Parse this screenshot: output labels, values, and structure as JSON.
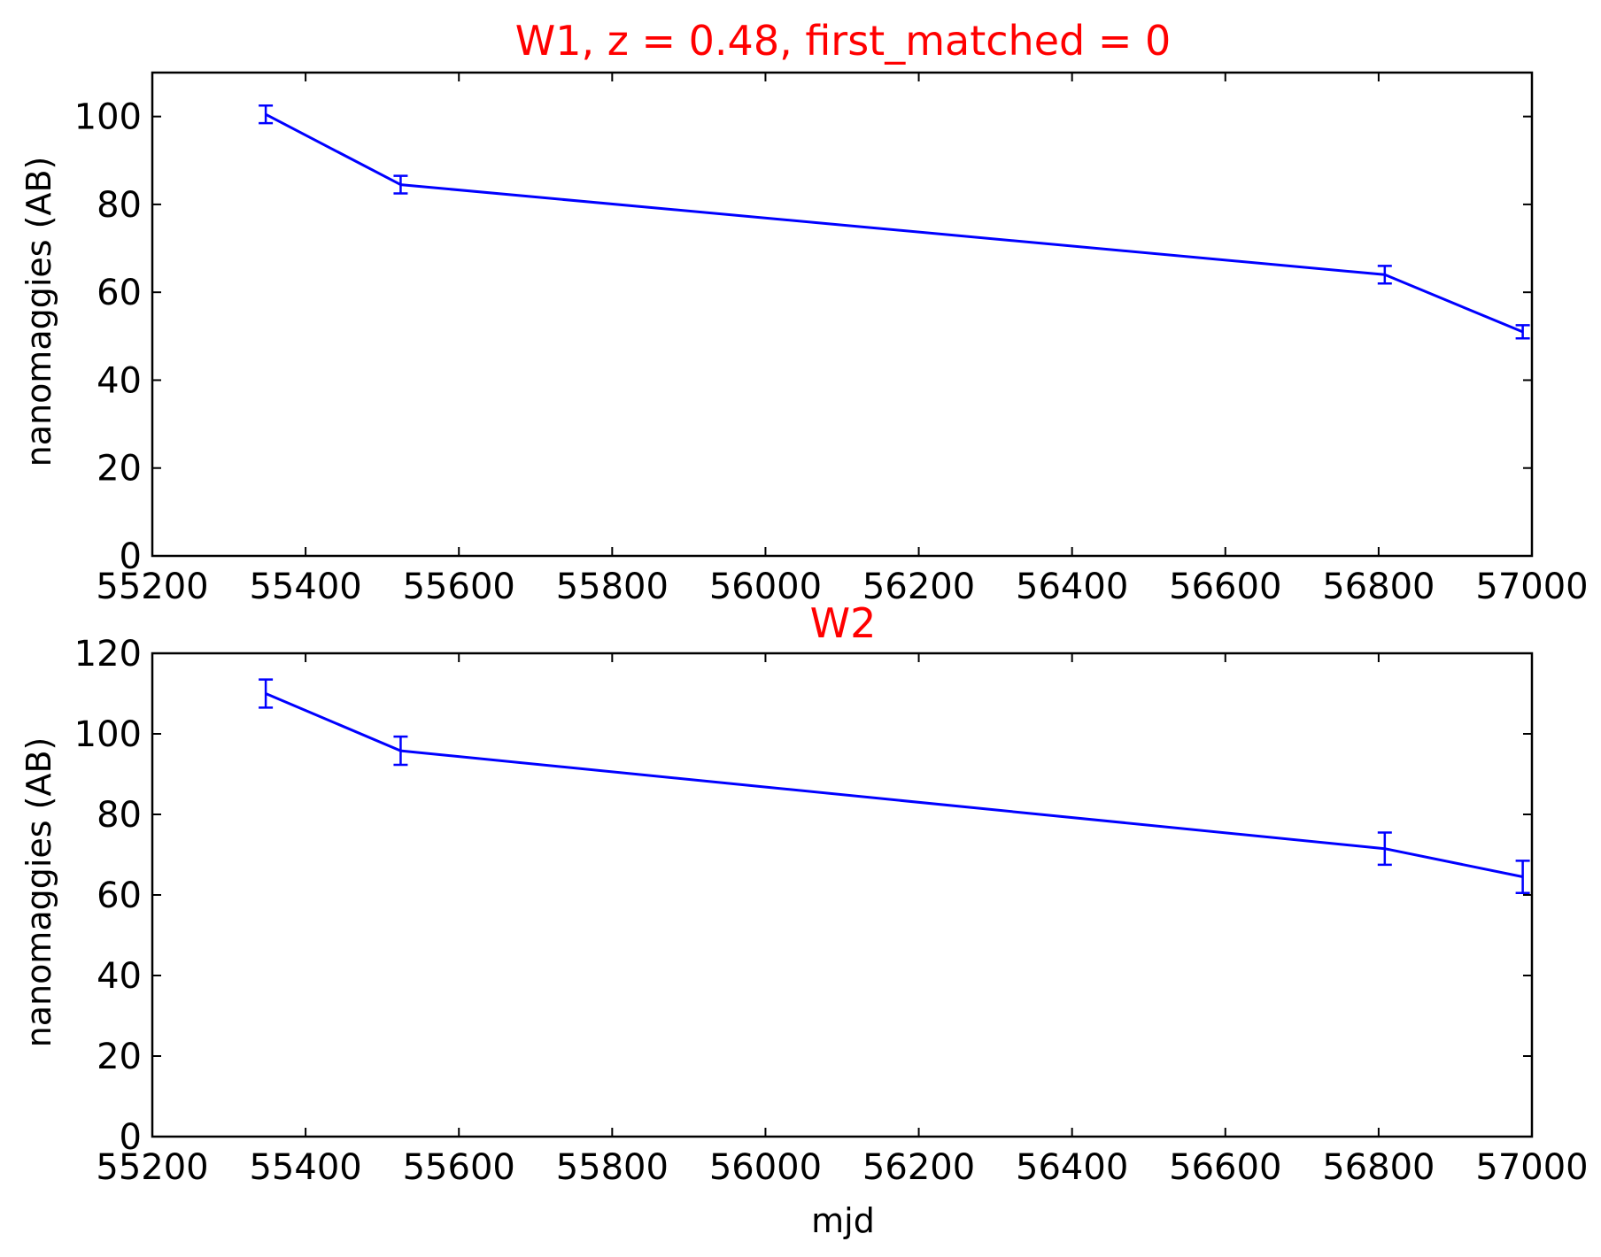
{
  "chart_data": [
    {
      "type": "line",
      "title": "W1, z = 0.48, first_matched = 0",
      "title_color": "#ff0000",
      "xlabel": "",
      "ylabel": "nanomaggies (AB)",
      "xlim": [
        55200,
        57000
      ],
      "ylim": [
        0,
        110
      ],
      "xticks": [
        55200,
        55400,
        55600,
        55800,
        56000,
        56200,
        56400,
        56600,
        56800,
        57000
      ],
      "yticks": [
        0,
        20,
        40,
        60,
        80,
        100
      ],
      "grid": false,
      "series": [
        {
          "color": "#0000ff",
          "x": [
            55348,
            55524,
            56808,
            56988
          ],
          "y": [
            100.5,
            84.5,
            64.0,
            51.0
          ],
          "yerr": [
            2.0,
            2.0,
            2.0,
            1.5
          ]
        }
      ]
    },
    {
      "type": "line",
      "title": "W2",
      "title_color": "#ff0000",
      "xlabel": "mjd",
      "ylabel": "nanomaggies (AB)",
      "xlim": [
        55200,
        57000
      ],
      "ylim": [
        0,
        120
      ],
      "xticks": [
        55200,
        55400,
        55600,
        55800,
        56000,
        56200,
        56400,
        56600,
        56800,
        57000
      ],
      "yticks": [
        0,
        20,
        40,
        60,
        80,
        100,
        120
      ],
      "grid": false,
      "series": [
        {
          "color": "#0000ff",
          "x": [
            55348,
            55524,
            56808,
            56988
          ],
          "y": [
            110.0,
            95.8,
            71.5,
            64.5
          ],
          "yerr": [
            3.5,
            3.5,
            4.0,
            4.0
          ]
        }
      ]
    }
  ]
}
